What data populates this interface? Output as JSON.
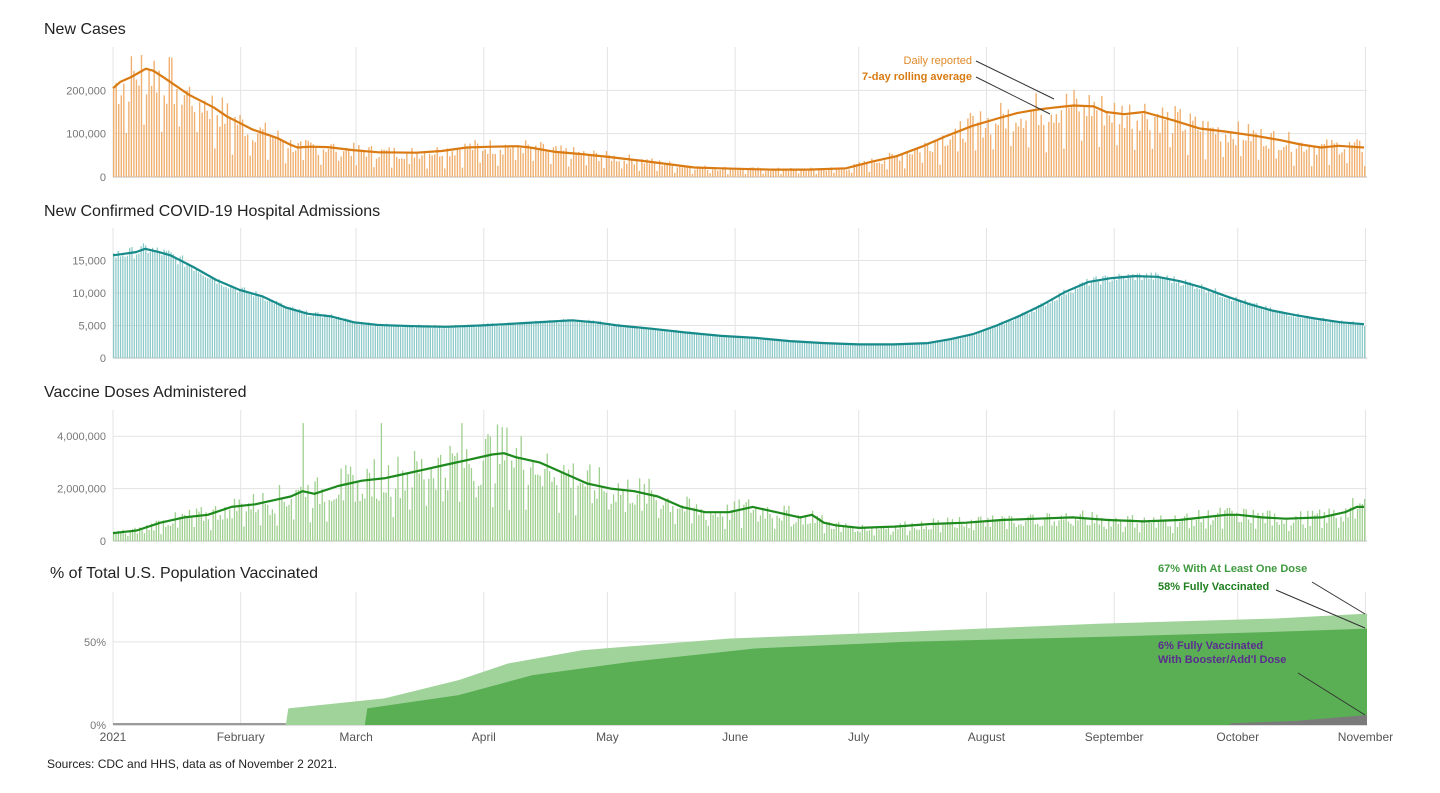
{
  "chart_data": [
    {
      "type": "bar",
      "title": "New Cases",
      "y_ticks": [
        "0",
        "100,000",
        "200,000"
      ],
      "y_tick_values": [
        0,
        100000,
        200000
      ],
      "ylim": [
        0,
        300000
      ],
      "series": [
        {
          "name": "Daily reported",
          "kind": "bar",
          "color": "#f0b070"
        },
        {
          "name": "7-day rolling average",
          "kind": "line",
          "color": "#d97a12"
        }
      ],
      "avg_points": [
        [
          0,
          205000
        ],
        [
          3,
          220000
        ],
        [
          7,
          230000
        ],
        [
          10,
          240000
        ],
        [
          13,
          250000
        ],
        [
          16,
          245000
        ],
        [
          20,
          230000
        ],
        [
          25,
          210000
        ],
        [
          30,
          190000
        ],
        [
          35,
          175000
        ],
        [
          40,
          160000
        ],
        [
          45,
          140000
        ],
        [
          50,
          125000
        ],
        [
          55,
          110000
        ],
        [
          60,
          100000
        ],
        [
          65,
          90000
        ],
        [
          70,
          75000
        ],
        [
          73,
          68000
        ],
        [
          78,
          70000
        ],
        [
          85,
          69000
        ],
        [
          95,
          62000
        ],
        [
          105,
          57000
        ],
        [
          120,
          56000
        ],
        [
          130,
          60000
        ],
        [
          140,
          68000
        ],
        [
          150,
          70000
        ],
        [
          160,
          71000
        ],
        [
          165,
          68000
        ],
        [
          175,
          58000
        ],
        [
          185,
          53000
        ],
        [
          195,
          47000
        ],
        [
          210,
          37000
        ],
        [
          230,
          22000
        ],
        [
          240,
          20000
        ],
        [
          260,
          17000
        ],
        [
          275,
          17000
        ],
        [
          290,
          20000
        ],
        [
          300,
          35000
        ],
        [
          310,
          48000
        ],
        [
          320,
          70000
        ],
        [
          330,
          95000
        ],
        [
          340,
          118000
        ],
        [
          350,
          135000
        ],
        [
          358,
          148000
        ],
        [
          365,
          155000
        ],
        [
          372,
          160000
        ],
        [
          380,
          165000
        ],
        [
          388,
          163000
        ],
        [
          393,
          150000
        ],
        [
          400,
          145000
        ],
        [
          408,
          150000
        ],
        [
          420,
          130000
        ],
        [
          430,
          112000
        ],
        [
          440,
          105000
        ],
        [
          452,
          95000
        ],
        [
          462,
          85000
        ],
        [
          470,
          75000
        ],
        [
          478,
          68000
        ],
        [
          485,
          72000
        ],
        [
          490,
          70000
        ],
        [
          495,
          68000
        ]
      ]
    },
    {
      "type": "bar",
      "title": "New Confirmed COVID-19 Hospital Admissions",
      "y_ticks": [
        "0",
        "5,000",
        "10,000",
        "15,000"
      ],
      "y_tick_values": [
        0,
        5000,
        10000,
        15000
      ],
      "ylim": [
        0,
        20000
      ],
      "series": [
        {
          "name": "Daily",
          "kind": "bar",
          "color": "#8ec9c9"
        },
        {
          "name": "7-day rolling average",
          "kind": "line",
          "color": "#178a8a"
        }
      ],
      "avg_points": [
        [
          0,
          15800
        ],
        [
          10,
          16300
        ],
        [
          14,
          16800
        ],
        [
          20,
          16300
        ],
        [
          25,
          15800
        ],
        [
          35,
          14000
        ],
        [
          45,
          12000
        ],
        [
          55,
          10500
        ],
        [
          65,
          9500
        ],
        [
          75,
          7800
        ],
        [
          85,
          6800
        ],
        [
          95,
          6400
        ],
        [
          105,
          5500
        ],
        [
          115,
          5100
        ],
        [
          130,
          4900
        ],
        [
          145,
          4800
        ],
        [
          160,
          5000
        ],
        [
          175,
          5300
        ],
        [
          190,
          5600
        ],
        [
          200,
          5800
        ],
        [
          210,
          5500
        ],
        [
          220,
          5000
        ],
        [
          235,
          4500
        ],
        [
          250,
          3900
        ],
        [
          265,
          3400
        ],
        [
          280,
          3100
        ],
        [
          295,
          2600
        ],
        [
          310,
          2300
        ],
        [
          325,
          2100
        ],
        [
          340,
          2100
        ],
        [
          355,
          2300
        ],
        [
          365,
          2900
        ],
        [
          375,
          3700
        ],
        [
          385,
          5000
        ],
        [
          395,
          6500
        ],
        [
          405,
          8200
        ],
        [
          415,
          10200
        ],
        [
          425,
          11700
        ],
        [
          435,
          12300
        ],
        [
          445,
          12600
        ],
        [
          455,
          12500
        ],
        [
          465,
          11800
        ],
        [
          475,
          10800
        ],
        [
          485,
          9500
        ],
        [
          495,
          8300
        ],
        [
          505,
          7300
        ],
        [
          515,
          6600
        ],
        [
          525,
          6000
        ],
        [
          535,
          5500
        ],
        [
          545,
          5200
        ]
      ]
    },
    {
      "type": "bar",
      "title": "Vaccine Doses Administered",
      "y_ticks": [
        "0",
        "2,000,000",
        "4,000,000"
      ],
      "y_tick_values": [
        0,
        2000000,
        4000000
      ],
      "ylim": [
        0,
        5000000
      ],
      "series": [
        {
          "name": "Daily",
          "kind": "bar",
          "color": "#9fd08f"
        },
        {
          "name": "7-day rolling average",
          "kind": "line",
          "color": "#1e8a1e"
        }
      ],
      "avg_points": [
        [
          0,
          300000
        ],
        [
          10,
          400000
        ],
        [
          20,
          700000
        ],
        [
          30,
          900000
        ],
        [
          40,
          1000000
        ],
        [
          50,
          1300000
        ],
        [
          60,
          1400000
        ],
        [
          70,
          1600000
        ],
        [
          75,
          1700000
        ],
        [
          80,
          1900000
        ],
        [
          85,
          1800000
        ],
        [
          95,
          2100000
        ],
        [
          105,
          2300000
        ],
        [
          115,
          2400000
        ],
        [
          120,
          2500000
        ],
        [
          130,
          2700000
        ],
        [
          140,
          2900000
        ],
        [
          150,
          3100000
        ],
        [
          160,
          3300000
        ],
        [
          165,
          3350000
        ],
        [
          170,
          3200000
        ],
        [
          180,
          3000000
        ],
        [
          190,
          2600000
        ],
        [
          200,
          2200000
        ],
        [
          210,
          2000000
        ],
        [
          220,
          1900000
        ],
        [
          230,
          1700000
        ],
        [
          240,
          1300000
        ],
        [
          250,
          1100000
        ],
        [
          260,
          1100000
        ],
        [
          270,
          1300000
        ],
        [
          280,
          1100000
        ],
        [
          290,
          900000
        ],
        [
          295,
          1000000
        ],
        [
          300,
          700000
        ],
        [
          305,
          600000
        ],
        [
          315,
          500000
        ],
        [
          330,
          550000
        ],
        [
          345,
          650000
        ],
        [
          360,
          700000
        ],
        [
          375,
          800000
        ],
        [
          390,
          850000
        ],
        [
          405,
          900000
        ],
        [
          420,
          800000
        ],
        [
          435,
          750000
        ],
        [
          450,
          800000
        ],
        [
          460,
          900000
        ],
        [
          470,
          1000000
        ],
        [
          475,
          1000000
        ],
        [
          485,
          900000
        ],
        [
          495,
          850000
        ],
        [
          510,
          900000
        ],
        [
          520,
          1100000
        ],
        [
          525,
          1300000
        ],
        [
          528,
          1300000
        ]
      ]
    },
    {
      "type": "area",
      "title": "% of Total U.S. Population Vaccinated",
      "y_ticks": [
        "0%",
        "50%"
      ],
      "y_tick_values": [
        0,
        50
      ],
      "ylim": [
        0,
        80
      ],
      "series": [
        {
          "name": "67% With At Least One Dose",
          "color": "#a0d39a",
          "points": [
            [
              0,
              0
            ],
            [
              70,
              0
            ],
            [
              71,
              10
            ],
            [
              110,
              16
            ],
            [
              140,
              27
            ],
            [
              160,
              37
            ],
            [
              190,
              45
            ],
            [
              250,
              52
            ],
            [
              320,
              56
            ],
            [
              400,
              61
            ],
            [
              470,
              64
            ],
            [
              508,
              67
            ]
          ]
        },
        {
          "name": "58% Fully Vaccinated",
          "color": "#5aaf55",
          "points": [
            [
              0,
              0
            ],
            [
              102,
              0
            ],
            [
              103,
              10
            ],
            [
              140,
              18
            ],
            [
              170,
              30
            ],
            [
              210,
              38
            ],
            [
              260,
              46
            ],
            [
              320,
              50
            ],
            [
              400,
              53
            ],
            [
              470,
              56
            ],
            [
              508,
              58
            ]
          ]
        },
        {
          "name": "6% Fully Vaccinated With Booster/Add'l Dose",
          "color": "#7a7a7a",
          "points": [
            [
              0,
              0
            ],
            [
              452,
              0
            ],
            [
              453,
              1
            ],
            [
              480,
              2.5
            ],
            [
              508,
              6
            ]
          ]
        }
      ],
      "annotations": [
        {
          "lines": [
            "67% With At Least One Dose"
          ],
          "color": "#3f9a3f"
        },
        {
          "lines": [
            "58% Fully Vaccinated"
          ],
          "color": "#1e7f1e"
        },
        {
          "lines": [
            "6% Fully Vaccinated",
            "With Booster/Add'l Dose"
          ],
          "color": "#5b2d8f"
        }
      ]
    }
  ],
  "x_axis": {
    "labels": [
      "2021",
      "February",
      "March",
      "April",
      "May",
      "June",
      "July",
      "August",
      "September",
      "October",
      "November"
    ],
    "day_offsets": [
      0,
      31,
      59,
      90,
      120,
      151,
      181,
      212,
      243,
      273,
      304
    ]
  },
  "annotations": {
    "cases_daily": "Daily reported",
    "cases_avg": "7-day rolling average"
  },
  "source": "Sources: CDC and HHS, data as of November 2 2021."
}
